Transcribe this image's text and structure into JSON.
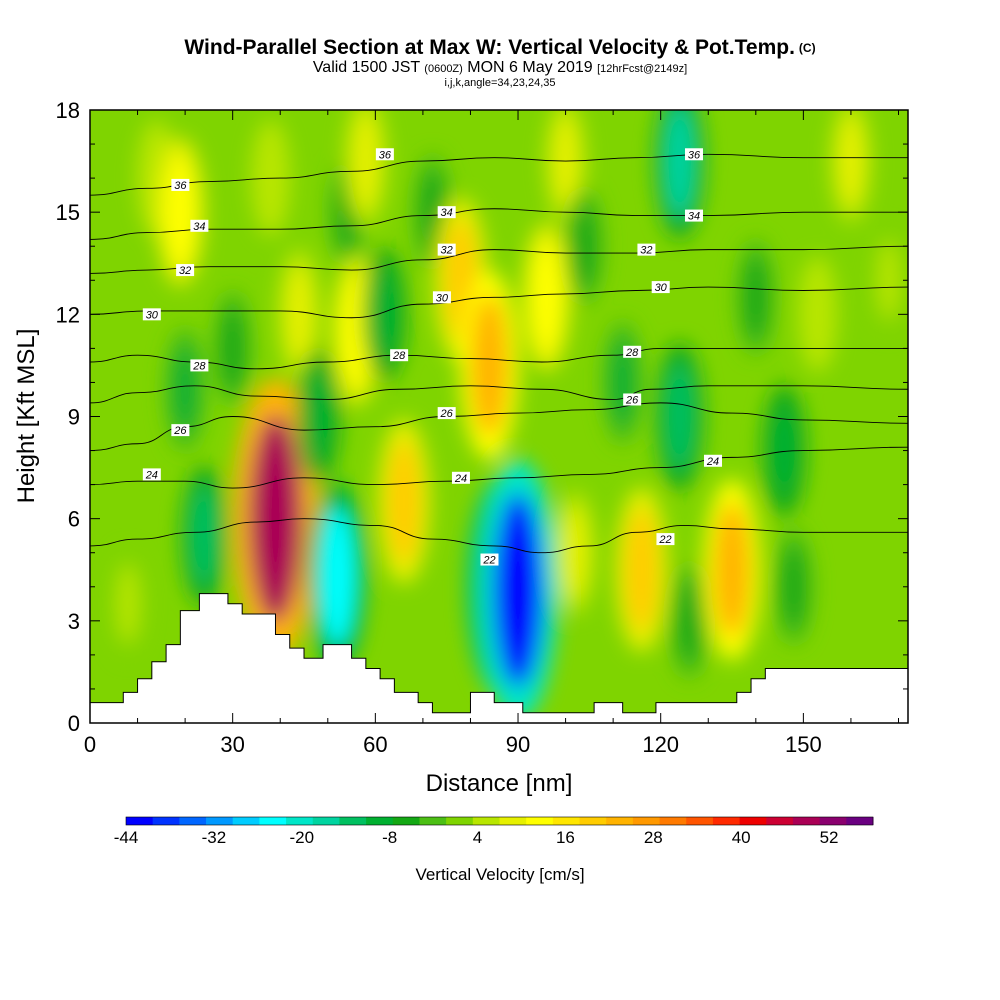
{
  "header": {
    "title": "Wind-Parallel Section at Max W: Vertical Velocity & Pot.Temp.",
    "copyright": "(C)",
    "valid_main": "Valid 1500 JST",
    "valid_utc": "(0600Z)",
    "valid_date": "MON 6 May 2019",
    "forecast": "[12hrFcst@2149z]",
    "indices": "i,j,k,angle=34,23,24,35"
  },
  "chart_data": {
    "type": "heatmap",
    "xlabel": "Distance [nm]",
    "ylabel": "Height [Kft MSL]",
    "xlim": [
      0,
      172
    ],
    "ylim": [
      0,
      18
    ],
    "x_ticks": [
      "0",
      "30",
      "60",
      "90",
      "120",
      "150"
    ],
    "y_ticks": [
      "0",
      "3",
      "6",
      "9",
      "12",
      "15",
      "18"
    ],
    "colorbar": {
      "label": "Vertical Velocity [cm/s]",
      "tick_labels": [
        "-44",
        "-32",
        "-20",
        "-8",
        "4",
        "16",
        "28",
        "40",
        "52"
      ],
      "min": -44,
      "max": 58,
      "colors": [
        "#0000ff",
        "#0033ff",
        "#0066ff",
        "#0099ff",
        "#00ccff",
        "#00ffff",
        "#00e6c8",
        "#00d4a0",
        "#00c060",
        "#00b030",
        "#14a814",
        "#4cbf14",
        "#7fd400",
        "#b8e600",
        "#e6f000",
        "#ffff00",
        "#ffe600",
        "#ffcc00",
        "#ffb300",
        "#ff9900",
        "#ff7a00",
        "#ff5500",
        "#ff2a00",
        "#ee0000",
        "#cc0033",
        "#aa0055",
        "#8a006e",
        "#6a0080"
      ]
    },
    "velocity_cells": [
      {
        "x": 8,
        "y": 3.5,
        "w": 4
      },
      {
        "x": 14,
        "y": 16,
        "w": 6
      },
      {
        "x": 19,
        "y": 15,
        "w": 14
      },
      {
        "x": 20,
        "y": 9.8,
        "w": -8
      },
      {
        "x": 24,
        "y": 5.5,
        "w": -12
      },
      {
        "x": 30,
        "y": 11,
        "w": -6
      },
      {
        "x": 39,
        "y": 6,
        "w": 48
      },
      {
        "x": 38,
        "y": 16,
        "w": 6
      },
      {
        "x": 44,
        "y": 12,
        "w": 10
      },
      {
        "x": 48,
        "y": 9,
        "w": -10
      },
      {
        "x": 52,
        "y": 4.3,
        "w": -24
      },
      {
        "x": 54,
        "y": 15,
        "w": -4
      },
      {
        "x": 56,
        "y": 11.5,
        "w": 14
      },
      {
        "x": 58,
        "y": 16.5,
        "w": 10
      },
      {
        "x": 62,
        "y": 12,
        "w": -10
      },
      {
        "x": 66,
        "y": 6.5,
        "w": 18
      },
      {
        "x": 72,
        "y": 15,
        "w": -6
      },
      {
        "x": 78,
        "y": 13,
        "w": 18
      },
      {
        "x": 84,
        "y": 10.5,
        "w": 24
      },
      {
        "x": 86,
        "y": 4,
        "w": -30
      },
      {
        "x": 90,
        "y": 3.9,
        "w": -42
      },
      {
        "x": 96,
        "y": 12.5,
        "w": 14
      },
      {
        "x": 100,
        "y": 16.5,
        "w": 8
      },
      {
        "x": 104,
        "y": 14,
        "w": -6
      },
      {
        "x": 102,
        "y": 5,
        "w": 8
      },
      {
        "x": 112,
        "y": 10,
        "w": -8
      },
      {
        "x": 116,
        "y": 4.5,
        "w": 18
      },
      {
        "x": 124,
        "y": 16.5,
        "w": -16
      },
      {
        "x": 124,
        "y": 9,
        "w": -14
      },
      {
        "x": 126,
        "y": 3,
        "w": -6
      },
      {
        "x": 135,
        "y": 4.5,
        "w": 22
      },
      {
        "x": 140,
        "y": 12.5,
        "w": -6
      },
      {
        "x": 146,
        "y": 8,
        "w": -10
      },
      {
        "x": 148,
        "y": 4,
        "w": -6
      },
      {
        "x": 153,
        "y": 12,
        "w": 6
      },
      {
        "x": 160,
        "y": 16.5,
        "w": 8
      },
      {
        "x": 168,
        "y": 13,
        "w": 4
      }
    ],
    "terrain": [
      [
        0,
        0.6
      ],
      [
        7,
        0.6
      ],
      [
        7,
        0.9
      ],
      [
        10,
        0.9
      ],
      [
        10,
        1.3
      ],
      [
        13,
        1.3
      ],
      [
        13,
        1.8
      ],
      [
        16,
        1.8
      ],
      [
        16,
        2.3
      ],
      [
        19,
        2.3
      ],
      [
        19,
        3.3
      ],
      [
        23,
        3.3
      ],
      [
        23,
        3.8
      ],
      [
        29,
        3.8
      ],
      [
        29,
        3.5
      ],
      [
        32,
        3.5
      ],
      [
        32,
        3.2
      ],
      [
        39,
        3.2
      ],
      [
        39,
        2.6
      ],
      [
        42,
        2.6
      ],
      [
        42,
        2.2
      ],
      [
        45,
        2.2
      ],
      [
        45,
        1.9
      ],
      [
        49,
        1.9
      ],
      [
        49,
        2.3
      ],
      [
        55,
        2.3
      ],
      [
        55,
        1.9
      ],
      [
        58,
        1.9
      ],
      [
        58,
        1.6
      ],
      [
        61,
        1.6
      ],
      [
        61,
        1.3
      ],
      [
        64,
        1.3
      ],
      [
        64,
        0.9
      ],
      [
        69,
        0.9
      ],
      [
        69,
        0.6
      ],
      [
        72,
        0.6
      ],
      [
        72,
        0.3
      ],
      [
        80,
        0.3
      ],
      [
        80,
        0.9
      ],
      [
        85,
        0.9
      ],
      [
        85,
        0.6
      ],
      [
        91,
        0.6
      ],
      [
        91,
        0.3
      ],
      [
        106,
        0.3
      ],
      [
        106,
        0.6
      ],
      [
        112,
        0.6
      ],
      [
        112,
        0.3
      ],
      [
        119,
        0.3
      ],
      [
        119,
        0.6
      ],
      [
        136,
        0.6
      ],
      [
        136,
        0.9
      ],
      [
        139,
        0.9
      ],
      [
        139,
        1.3
      ],
      [
        142,
        1.3
      ],
      [
        142,
        1.6
      ],
      [
        172,
        1.6
      ]
    ],
    "isentropes": [
      {
        "label": "22",
        "points": [
          [
            0,
            5.2
          ],
          [
            10,
            5.4
          ],
          [
            22,
            5.6
          ],
          [
            35,
            5.9
          ],
          [
            45,
            6.0
          ],
          [
            60,
            5.8
          ],
          [
            72,
            5.4
          ],
          [
            85,
            5.2
          ],
          [
            95,
            5.0
          ],
          [
            105,
            5.2
          ],
          [
            115,
            5.6
          ],
          [
            125,
            5.8
          ],
          [
            135,
            5.7
          ],
          [
            150,
            5.6
          ],
          [
            172,
            5.6
          ]
        ]
      },
      {
        "label": "24",
        "points": [
          [
            0,
            7.0
          ],
          [
            10,
            7.1
          ],
          [
            20,
            7.1
          ],
          [
            30,
            6.9
          ],
          [
            45,
            7.2
          ],
          [
            60,
            7.0
          ],
          [
            75,
            7.1
          ],
          [
            90,
            7.2
          ],
          [
            105,
            7.3
          ],
          [
            120,
            7.5
          ],
          [
            135,
            7.8
          ],
          [
            150,
            8.0
          ],
          [
            172,
            8.1
          ]
        ]
      },
      {
        "label": "26",
        "points": [
          [
            0,
            8.0
          ],
          [
            10,
            8.2
          ],
          [
            20,
            8.7
          ],
          [
            30,
            9.0
          ],
          [
            45,
            8.6
          ],
          [
            60,
            8.7
          ],
          [
            75,
            9.0
          ],
          [
            90,
            9.1
          ],
          [
            105,
            9.2
          ],
          [
            120,
            9.4
          ],
          [
            135,
            9.1
          ],
          [
            150,
            8.9
          ],
          [
            172,
            8.8
          ]
        ]
      },
      {
        "label": "26",
        "points": [
          [
            0,
            9.4
          ],
          [
            10,
            9.7
          ],
          [
            22,
            9.9
          ],
          [
            35,
            9.6
          ],
          [
            50,
            9.5
          ],
          [
            65,
            9.8
          ],
          [
            80,
            9.9
          ],
          [
            95,
            9.8
          ],
          [
            110,
            9.5
          ],
          [
            118,
            9.8
          ],
          [
            130,
            9.9
          ],
          [
            150,
            9.9
          ],
          [
            172,
            9.8
          ]
        ]
      },
      {
        "label": "28",
        "points": [
          [
            0,
            10.6
          ],
          [
            10,
            10.8
          ],
          [
            22,
            10.6
          ],
          [
            35,
            10.4
          ],
          [
            50,
            10.6
          ],
          [
            65,
            10.8
          ],
          [
            80,
            10.7
          ],
          [
            95,
            10.6
          ],
          [
            110,
            10.8
          ],
          [
            120,
            11.0
          ],
          [
            135,
            11.0
          ],
          [
            150,
            11.0
          ],
          [
            172,
            11.0
          ]
        ]
      },
      {
        "label": "30",
        "points": [
          [
            0,
            12.0
          ],
          [
            12,
            12.1
          ],
          [
            25,
            12.1
          ],
          [
            40,
            12.1
          ],
          [
            55,
            11.9
          ],
          [
            70,
            12.3
          ],
          [
            85,
            12.5
          ],
          [
            100,
            12.6
          ],
          [
            115,
            12.7
          ],
          [
            130,
            12.8
          ],
          [
            150,
            12.7
          ],
          [
            172,
            12.8
          ]
        ]
      },
      {
        "label": "32",
        "points": [
          [
            0,
            13.2
          ],
          [
            12,
            13.3
          ],
          [
            25,
            13.4
          ],
          [
            40,
            13.4
          ],
          [
            55,
            13.3
          ],
          [
            70,
            13.6
          ],
          [
            85,
            13.9
          ],
          [
            100,
            13.8
          ],
          [
            115,
            13.8
          ],
          [
            130,
            13.9
          ],
          [
            150,
            13.9
          ],
          [
            172,
            14.0
          ]
        ]
      },
      {
        "label": "34",
        "points": [
          [
            0,
            14.2
          ],
          [
            12,
            14.4
          ],
          [
            25,
            14.5
          ],
          [
            40,
            14.5
          ],
          [
            55,
            14.6
          ],
          [
            70,
            14.9
          ],
          [
            85,
            15.1
          ],
          [
            100,
            15.0
          ],
          [
            115,
            14.9
          ],
          [
            130,
            14.9
          ],
          [
            150,
            15.0
          ],
          [
            172,
            15.0
          ]
        ]
      },
      {
        "label": "36",
        "points": [
          [
            0,
            15.5
          ],
          [
            12,
            15.7
          ],
          [
            25,
            15.9
          ],
          [
            40,
            16.0
          ],
          [
            55,
            16.2
          ],
          [
            70,
            16.5
          ],
          [
            85,
            16.6
          ],
          [
            100,
            16.5
          ],
          [
            115,
            16.6
          ],
          [
            130,
            16.7
          ],
          [
            150,
            16.6
          ],
          [
            172,
            16.6
          ]
        ]
      }
    ],
    "contour_labels": [
      {
        "text": "36",
        "x": 19,
        "y": 15.8
      },
      {
        "text": "36",
        "x": 62,
        "y": 16.7
      },
      {
        "text": "36",
        "x": 127,
        "y": 16.7
      },
      {
        "text": "34",
        "x": 23,
        "y": 14.6
      },
      {
        "text": "34",
        "x": 75,
        "y": 15.0
      },
      {
        "text": "34",
        "x": 127,
        "y": 14.9
      },
      {
        "text": "32",
        "x": 20,
        "y": 13.3
      },
      {
        "text": "32",
        "x": 75,
        "y": 13.9
      },
      {
        "text": "32",
        "x": 117,
        "y": 13.9
      },
      {
        "text": "30",
        "x": 13,
        "y": 12.0
      },
      {
        "text": "30",
        "x": 74,
        "y": 12.5
      },
      {
        "text": "30",
        "x": 120,
        "y": 12.8
      },
      {
        "text": "28",
        "x": 23,
        "y": 10.5
      },
      {
        "text": "28",
        "x": 65,
        "y": 10.8
      },
      {
        "text": "28",
        "x": 114,
        "y": 10.9
      },
      {
        "text": "26",
        "x": 19,
        "y": 8.6
      },
      {
        "text": "26",
        "x": 75,
        "y": 9.1
      },
      {
        "text": "26",
        "x": 114,
        "y": 9.5
      },
      {
        "text": "24",
        "x": 13,
        "y": 7.3
      },
      {
        "text": "24",
        "x": 78,
        "y": 7.2
      },
      {
        "text": "24",
        "x": 131,
        "y": 7.7
      },
      {
        "text": "22",
        "x": 84,
        "y": 4.8
      },
      {
        "text": "22",
        "x": 121,
        "y": 5.4
      }
    ]
  }
}
